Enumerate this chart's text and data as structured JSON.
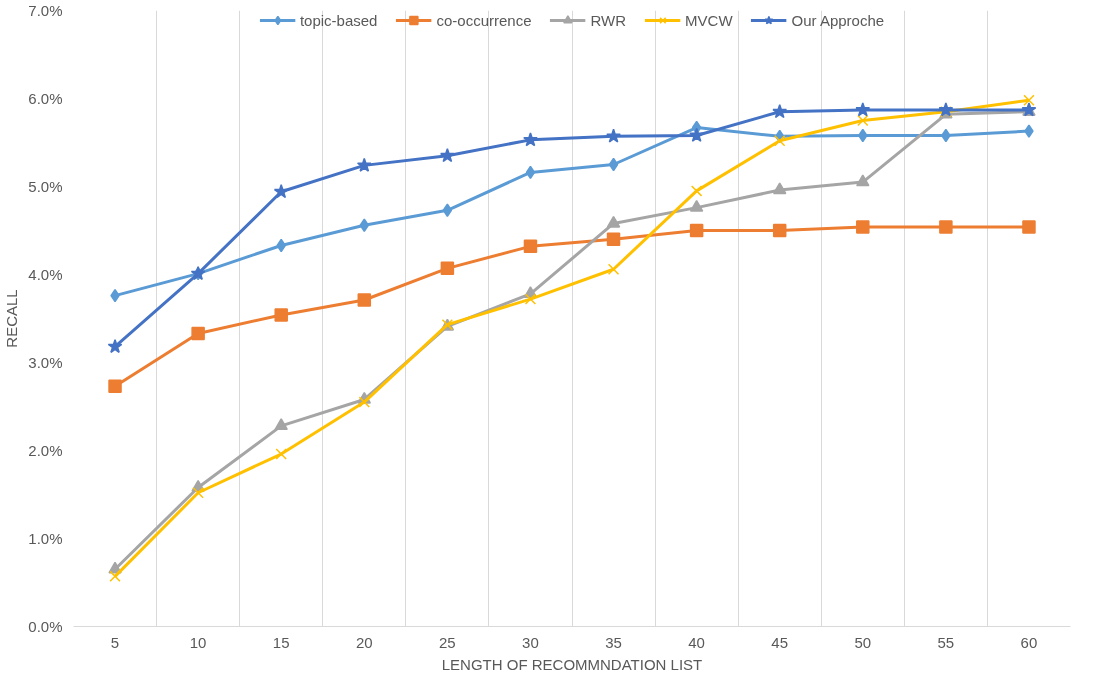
{
  "chart_data": {
    "type": "line",
    "xlabel": "LENGTH OF RECOMMNDATION LIST",
    "ylabel": "RECALL",
    "categories": [
      "5",
      "10",
      "15",
      "20",
      "25",
      "30",
      "35",
      "40",
      "45",
      "50",
      "55",
      "60"
    ],
    "series": [
      {
        "name": "topic-based",
        "color": "#5b9bd5",
        "marker": "diamond",
        "values": [
          3.76,
          4.01,
          4.33,
          4.56,
          4.73,
          5.16,
          5.25,
          5.67,
          5.57,
          5.58,
          5.58,
          5.63
        ]
      },
      {
        "name": "co-occurrence",
        "color": "#ed7d31",
        "marker": "square",
        "values": [
          2.73,
          3.33,
          3.54,
          3.71,
          4.07,
          4.32,
          4.4,
          4.5,
          4.5,
          4.54,
          4.54,
          4.54
        ]
      },
      {
        "name": "RWR",
        "color": "#a5a5a5",
        "marker": "triangle",
        "values": [
          0.65,
          1.58,
          2.28,
          2.58,
          3.41,
          3.78,
          4.58,
          4.76,
          4.96,
          5.05,
          5.82,
          5.85
        ]
      },
      {
        "name": "MVCW",
        "color": "#ffc000",
        "marker": "cross",
        "values": [
          0.57,
          1.52,
          1.96,
          2.55,
          3.43,
          3.72,
          4.06,
          4.95,
          5.52,
          5.75,
          5.85,
          5.98
        ]
      },
      {
        "name": "Our Approche",
        "color": "#4472c4",
        "marker": "star",
        "values": [
          3.18,
          4.01,
          4.94,
          5.24,
          5.35,
          5.53,
          5.57,
          5.58,
          5.85,
          5.87,
          5.87,
          5.87
        ]
      }
    ],
    "ylim": [
      0,
      7
    ],
    "yticks": [
      {
        "value": 0,
        "label": "0.0%"
      },
      {
        "value": 1,
        "label": "1.0%"
      },
      {
        "value": 2,
        "label": "2.0%"
      },
      {
        "value": 3,
        "label": "3.0%"
      },
      {
        "value": 4,
        "label": "4.0%"
      },
      {
        "value": 5,
        "label": "5.0%"
      },
      {
        "value": 6,
        "label": "6.0%"
      },
      {
        "value": 7,
        "label": "7.0%"
      }
    ],
    "grid": "x",
    "legend": "top",
    "line_style": "solid"
  }
}
